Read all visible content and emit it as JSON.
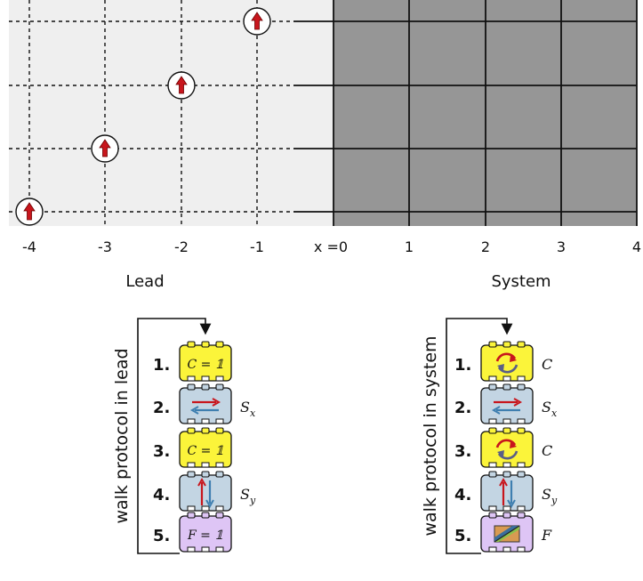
{
  "lattice": {
    "x_ticks": [
      "-4",
      "-3",
      "-2",
      "-1",
      "x =0",
      "1",
      "2",
      "3",
      "4"
    ],
    "lead_label": "Lead",
    "system_label": "System",
    "walker_icon": "red-up-arrow-icon"
  },
  "colors": {
    "lead_bg": "#efefef",
    "system_bg": "#969696",
    "yellow_block": "#fbf43a",
    "blue_block": "#c3d5e3",
    "purple_block": "#dec5f5",
    "arrow_red": "#c8161d",
    "arrow_blue": "#3f7fb0"
  },
  "lead_protocol": {
    "title": "walk protocol in lead",
    "steps": [
      {
        "num": "1.",
        "icon": "identity-coin",
        "inside": "C = 𝟙",
        "side": ""
      },
      {
        "num": "2.",
        "icon": "horizontal-shift-icon",
        "inside": "",
        "side": "S",
        "sub": "x"
      },
      {
        "num": "3.",
        "icon": "identity-coin",
        "inside": "C = 𝟙",
        "side": ""
      },
      {
        "num": "4.",
        "icon": "vertical-shift-icon",
        "inside": "",
        "side": "S",
        "sub": "y"
      },
      {
        "num": "5.",
        "icon": "identity-field",
        "inside": "F = 𝟙",
        "side": ""
      }
    ]
  },
  "system_protocol": {
    "title": "walk protocol in system",
    "steps": [
      {
        "num": "1.",
        "icon": "coin-rotation-icon",
        "inside": "",
        "side": "C"
      },
      {
        "num": "2.",
        "icon": "horizontal-shift-icon",
        "inside": "",
        "side": "S",
        "sub": "x"
      },
      {
        "num": "3.",
        "icon": "coin-rotation-icon",
        "inside": "",
        "side": "C"
      },
      {
        "num": "4.",
        "icon": "vertical-shift-icon",
        "inside": "",
        "side": "S",
        "sub": "y"
      },
      {
        "num": "5.",
        "icon": "field-phase-icon",
        "inside": "",
        "side": "F"
      }
    ]
  }
}
